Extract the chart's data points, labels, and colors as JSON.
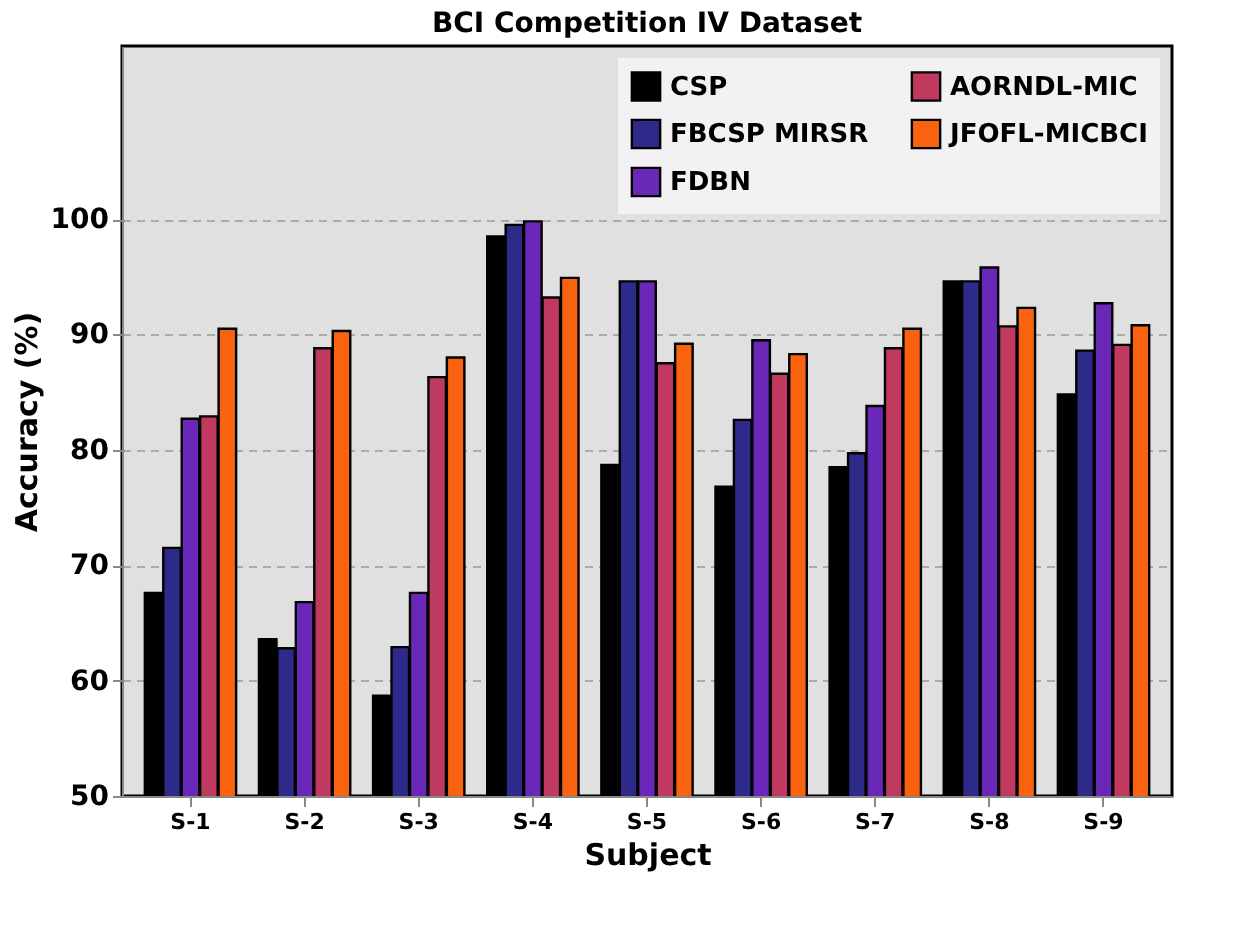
{
  "chart_data": {
    "type": "bar",
    "title": "BCI Competition IV Dataset",
    "xlabel": "Subject",
    "ylabel": "Accuracy (%)",
    "categories": [
      "S-1",
      "S-2",
      "S-3",
      "S-4",
      "S-5",
      "S-6",
      "S-7",
      "S-8",
      "S-9"
    ],
    "series": [
      {
        "name": "CSP",
        "color": "#000000",
        "values": [
          67.6,
          63.6,
          58.7,
          98.5,
          78.7,
          76.8,
          78.5,
          94.6,
          84.8
        ]
      },
      {
        "name": "FBCSP MIRSR",
        "color": "#2e2a8a",
        "values": [
          71.5,
          62.8,
          62.9,
          99.5,
          94.6,
          82.6,
          79.7,
          94.6,
          88.6
        ]
      },
      {
        "name": "FDBN",
        "color": "#6a28b8",
        "values": [
          82.7,
          66.8,
          67.6,
          99.8,
          94.6,
          89.5,
          83.8,
          95.8,
          92.7
        ]
      },
      {
        "name": "AORNDL-MIC",
        "color": "#c0395f",
        "values": [
          82.9,
          88.8,
          86.3,
          93.2,
          87.5,
          86.6,
          88.8,
          90.7,
          89.1
        ]
      },
      {
        "name": "JFOFL-MICBCI",
        "color": "#f9620f",
        "values": [
          90.5,
          90.3,
          88.0,
          94.9,
          89.2,
          88.3,
          90.5,
          92.3,
          90.8
        ]
      }
    ],
    "ylim": [
      50,
      115
    ],
    "yticks": [
      50,
      60,
      70,
      80,
      90,
      100
    ],
    "grid": true,
    "legend": "top right"
  }
}
